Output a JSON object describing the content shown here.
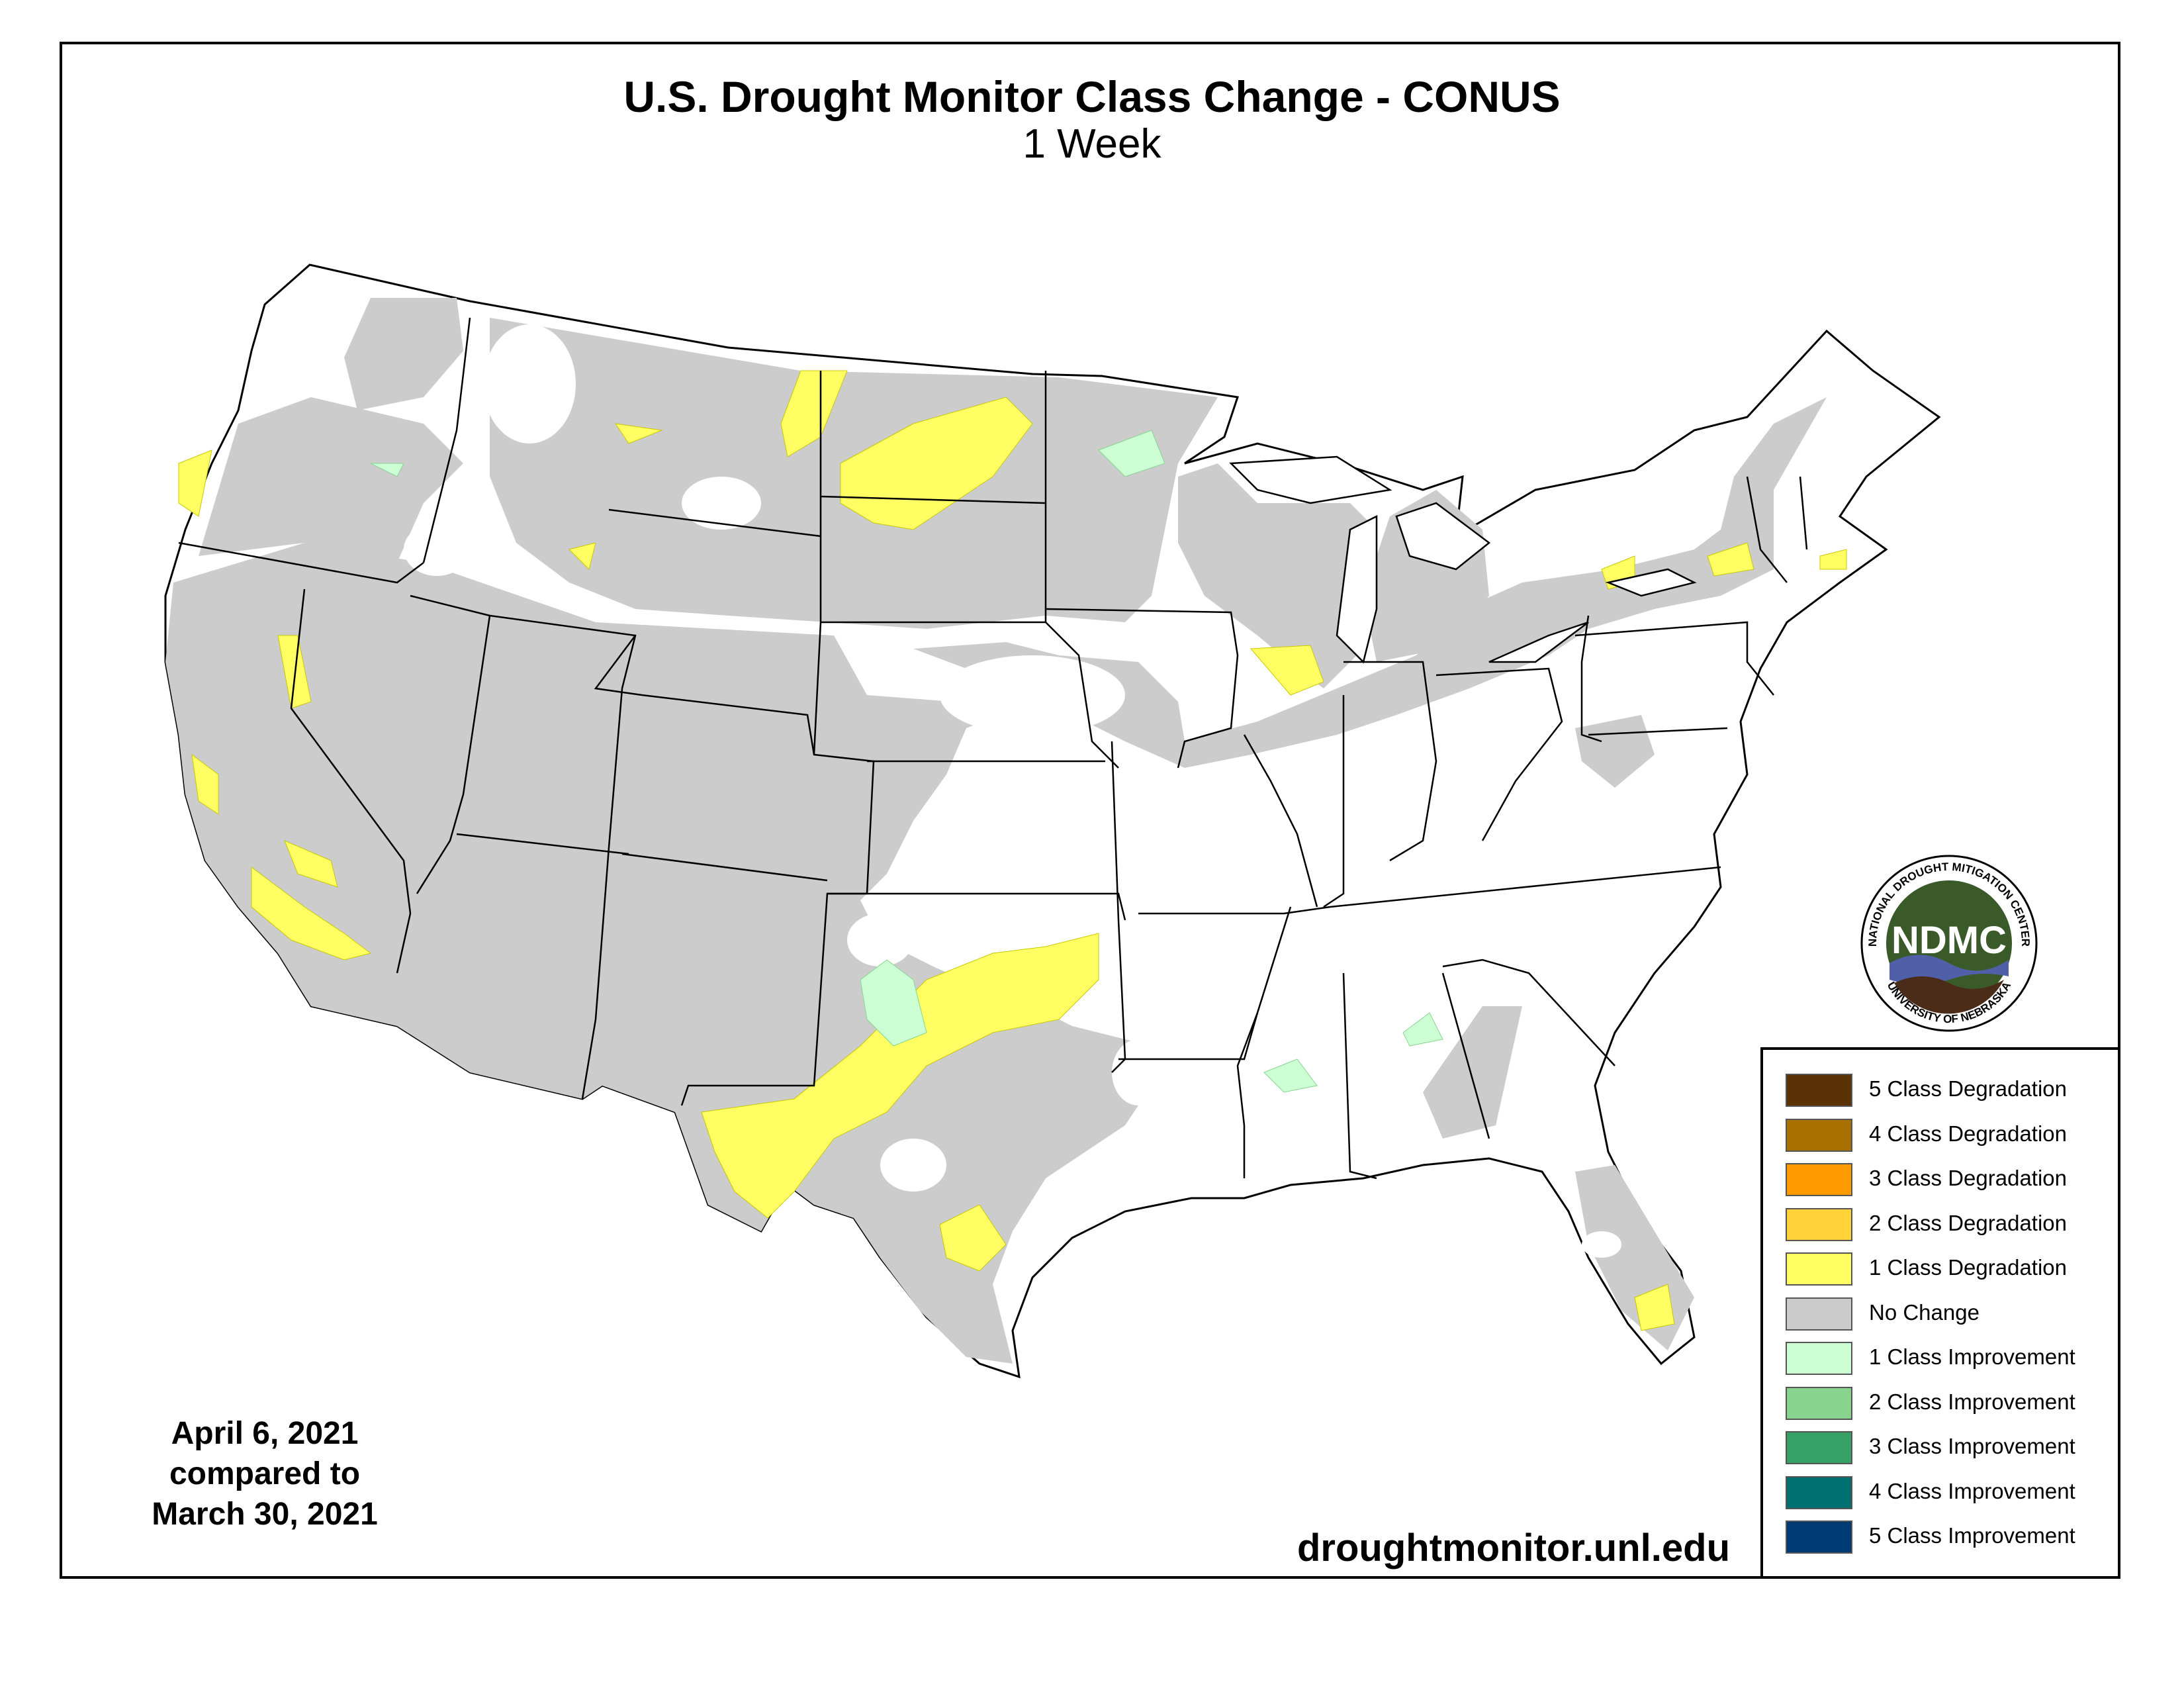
{
  "map": {
    "title": "U.S. Drought Monitor Class Change - CONUS",
    "subtitle": "1 Week",
    "date_lines": [
      "April 6, 2021",
      "compared to",
      "March 30, 2021"
    ],
    "website": "droughtmonitor.unl.edu"
  },
  "legend": [
    {
      "label": "5 Class Degradation",
      "color": "#5a3205"
    },
    {
      "label": "4 Class Degradation",
      "color": "#a87000"
    },
    {
      "label": "3 Class Degradation",
      "color": "#ff9a00"
    },
    {
      "label": "2 Class Degradation",
      "color": "#ffd337"
    },
    {
      "label": "1 Class Degradation",
      "color": "#ffff64"
    },
    {
      "label": "No Change",
      "color": "#cccccc"
    },
    {
      "label": "1 Class Improvement",
      "color": "#ccffd4"
    },
    {
      "label": "2 Class Improvement",
      "color": "#88d48f"
    },
    {
      "label": "3 Class Improvement",
      "color": "#36a065"
    },
    {
      "label": "4 Class Improvement",
      "color": "#007070"
    },
    {
      "label": "5 Class Improvement",
      "color": "#003a74"
    }
  ],
  "logo": {
    "abbreviation": "NDMC",
    "ring_top": "NATIONAL DROUGHT MITIGATION CENTER",
    "ring_bottom": "UNIVERSITY OF NEBRASKA"
  },
  "colors": {
    "no_change": "#cccccc",
    "degradation_1": "#ffff64",
    "improvement_1": "#ccffd4",
    "border": "#000000",
    "logo_green": "#3a5a2a",
    "logo_blue": "#5060a8",
    "logo_brown": "#4a2c18"
  }
}
